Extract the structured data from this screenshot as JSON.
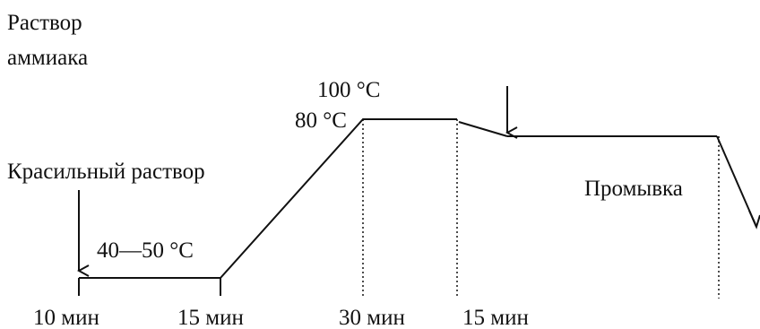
{
  "labels": {
    "ammonia_solution": [
      "Раствор",
      "аммиака"
    ],
    "dye_solution": "Красильный раствор",
    "temp_low": "40—50 °С",
    "temp_100": "100 °С",
    "temp_80": "80 °С",
    "rinse": "Промывка"
  },
  "durations": [
    "10 мин",
    "15 мин",
    "30 мин",
    "15 мин"
  ],
  "colors": {
    "ink": "#111111",
    "background": "#ffffff"
  }
}
